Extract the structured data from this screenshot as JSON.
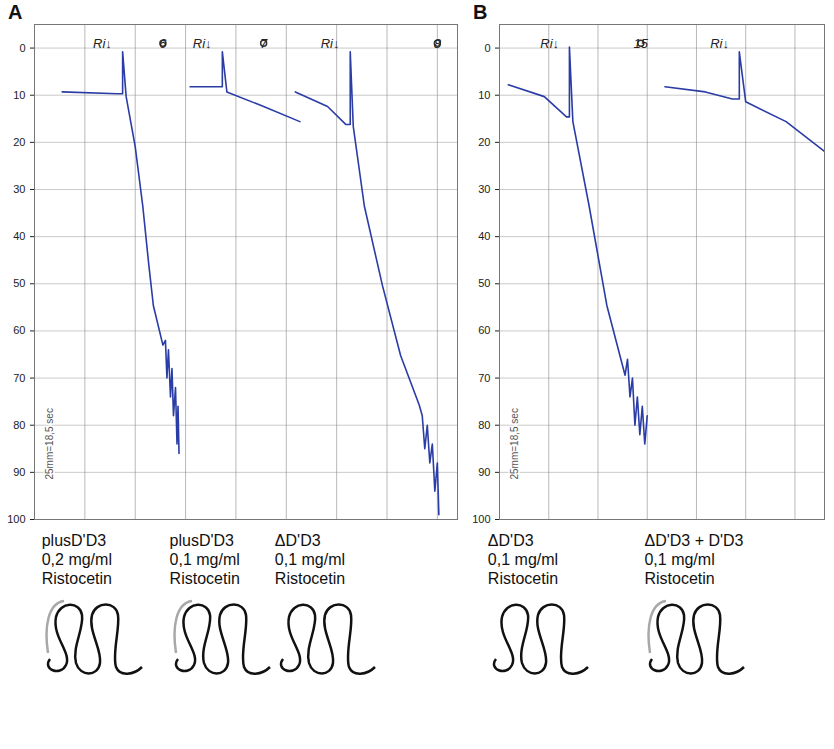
{
  "chart_data": [
    {
      "panel": "A",
      "type": "line",
      "xlim": [
        0,
        8.4
      ],
      "xticks": [
        0,
        1,
        2,
        3,
        4,
        5,
        6,
        7,
        8
      ],
      "ylim": [
        -5,
        100
      ],
      "yticks": [
        0,
        10,
        20,
        30,
        40,
        50,
        60,
        70,
        80,
        90,
        100
      ],
      "grid": true,
      "tick_labels": "y",
      "note": "25mm=18,5 sec",
      "annotations": [
        {
          "text": "Ri↓",
          "x": 1.35,
          "y": -1
        },
        {
          "text": "Ri↓",
          "x": 3.33,
          "y": -1
        },
        {
          "text": "Ri↓",
          "x": 5.87,
          "y": -1
        },
        {
          "text": "6",
          "x": 2.55,
          "y": -1,
          "circled": true
        },
        {
          "text": "7",
          "x": 4.55,
          "y": -1,
          "circled": true
        },
        {
          "text": "8",
          "x": 8.0,
          "y": -1,
          "circled": true
        }
      ],
      "series": [
        {
          "labels": [
            "plusD'D3",
            "0,2 mg/ml",
            "Ristocetin"
          ],
          "d_prime_d3": true,
          "color": "#2a3ca6",
          "x": [
            0.55,
            1.64,
            1.75,
            1.75,
            1.82,
            2.0,
            2.15,
            2.27,
            2.36,
            2.55,
            2.6,
            2.63,
            2.66,
            2.7,
            2.73,
            2.76,
            2.8,
            2.83,
            2.85,
            2.87
          ],
          "values": [
            9.3,
            9.7,
            9.7,
            0.8,
            10.3,
            20.9,
            33.5,
            46,
            54.6,
            63,
            62,
            70,
            64,
            74,
            68,
            78,
            72,
            84,
            76,
            86
          ]
        },
        {
          "labels": [
            "plusD'D3",
            "0,1 mg/ml",
            "Ristocetin"
          ],
          "d_prime_d3": true,
          "color": "#2a3ca6",
          "x": [
            3.09,
            3.64,
            3.73,
            3.73,
            3.82,
            4.55,
            5.27
          ],
          "values": [
            8.2,
            8.2,
            8.2,
            0.8,
            9.3,
            12.4,
            15.6
          ]
        },
        {
          "labels": [
            "ΔD'D3",
            "0,1 mg/ml",
            "Ristocetin"
          ],
          "d_prime_d3": false,
          "color": "#2a3ca6",
          "x": [
            5.18,
            5.82,
            6.18,
            6.27,
            6.27,
            6.33,
            6.55,
            6.91,
            7.27,
            7.64,
            7.7,
            7.75,
            7.8,
            7.85,
            7.9,
            7.95,
            8.0,
            8.03
          ],
          "values": [
            9.3,
            12.4,
            16.2,
            16.2,
            0.8,
            16.6,
            33.5,
            50.4,
            65.2,
            75.7,
            78,
            85,
            80,
            88,
            84,
            94,
            88,
            99
          ]
        }
      ]
    },
    {
      "panel": "B",
      "type": "line",
      "xlim": [
        0,
        6.6
      ],
      "xticks": [
        0,
        1,
        2,
        3,
        4,
        5,
        6
      ],
      "ylim": [
        -5,
        100
      ],
      "yticks": [
        0,
        10,
        20,
        30,
        40,
        50,
        60,
        70,
        80,
        90,
        100
      ],
      "grid": true,
      "tick_labels": "y",
      "note": "25mm=18,5 sec",
      "annotations": [
        {
          "text": "Ri↓",
          "x": 1.02,
          "y": -1
        },
        {
          "text": "Ri↓",
          "x": 4.47,
          "y": -1
        },
        {
          "text": "15",
          "x": 2.87,
          "y": -1,
          "circled": true
        }
      ],
      "series": [
        {
          "labels": [
            "ΔD'D3",
            "0,1 mg/ml",
            "Ristocetin"
          ],
          "d_prime_d3": false,
          "color": "#2a3ca6",
          "x": [
            0.18,
            0.91,
            1.36,
            1.42,
            1.42,
            1.49,
            1.82,
            2.18,
            2.55,
            2.6,
            2.65,
            2.7,
            2.75,
            2.8,
            2.85,
            2.9,
            2.95,
            3.0
          ],
          "values": [
            7.8,
            10.3,
            14.6,
            14.6,
            -0.2,
            15.6,
            33.5,
            54.6,
            69.4,
            66,
            74,
            70,
            80,
            74,
            82,
            76,
            84,
            78
          ]
        },
        {
          "labels": [
            "ΔD'D3 + D'D3",
            "0,1 mg/ml",
            "Ristocetin"
          ],
          "d_prime_d3": true,
          "color": "#2a3ca6",
          "x": [
            3.36,
            4.18,
            4.73,
            4.87,
            4.87,
            5.0,
            5.82,
            6.6
          ],
          "values": [
            8.2,
            9.3,
            10.8,
            10.8,
            0.8,
            11.4,
            15.6,
            21.9
          ]
        }
      ]
    }
  ]
}
